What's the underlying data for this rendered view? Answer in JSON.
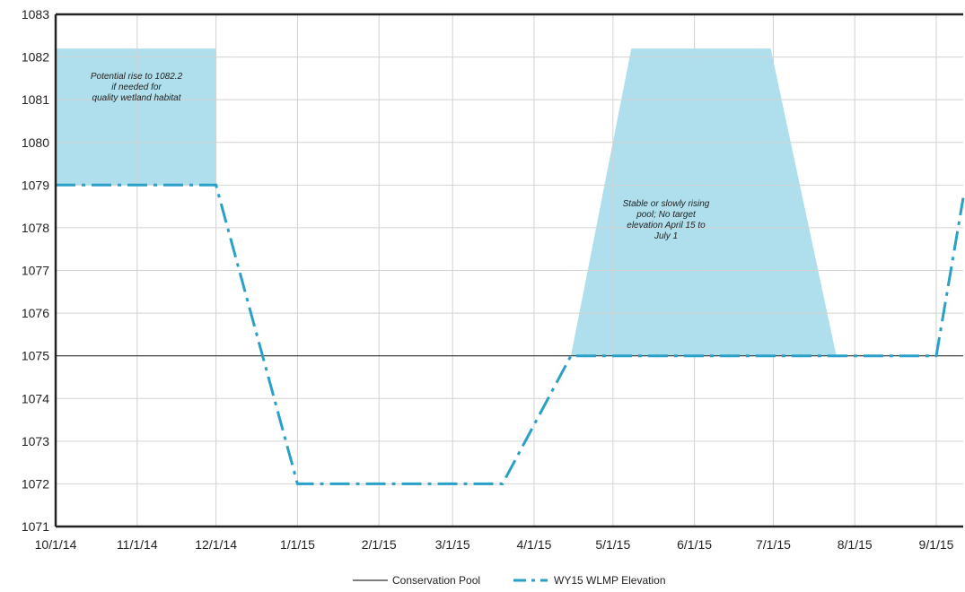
{
  "chart_data": {
    "type": "line",
    "x_ticks": [
      "10/1/14",
      "11/1/14",
      "12/1/14",
      "1/1/15",
      "2/1/15",
      "3/1/15",
      "4/1/15",
      "5/1/15",
      "6/1/15",
      "7/1/15",
      "8/1/15",
      "9/1/15"
    ],
    "ylim": [
      1071,
      1083
    ],
    "y_ticks": [
      1071,
      1072,
      1073,
      1074,
      1075,
      1076,
      1077,
      1078,
      1079,
      1080,
      1081,
      1082,
      1083
    ],
    "grid": true,
    "legend_position": "bottom",
    "series": [
      {
        "name": "Conservation Pool",
        "color": "#333333",
        "style": "solid",
        "points": [
          [
            "10/1/14",
            1075
          ],
          [
            "9/30/15",
            1075
          ]
        ]
      },
      {
        "name": "WY15 WLMP Elevation",
        "color": "#29a0c8",
        "style": "dash-dot",
        "points": [
          [
            "10/1/14",
            1079
          ],
          [
            "12/1/14",
            1079
          ],
          [
            "1/1/15",
            1072
          ],
          [
            "3/20/15",
            1072
          ],
          [
            "4/15/15",
            1075
          ],
          [
            "9/1/15",
            1075
          ],
          [
            "9/30/15",
            1078.7
          ]
        ]
      }
    ],
    "bands": [
      {
        "color": "#a6dcea",
        "polygon": [
          [
            "10/1/14",
            1079
          ],
          [
            "10/1/14",
            1082.2
          ],
          [
            "12/1/14",
            1082.2
          ],
          [
            "12/1/14",
            1079
          ]
        ],
        "note": [
          "Potential rise to 1082.2",
          "if needed for",
          "quality wetland habitat"
        ]
      },
      {
        "color": "#a6dcea",
        "polygon": [
          [
            "4/15/15",
            1075
          ],
          [
            "5/8/15",
            1082.2
          ],
          [
            "6/30/15",
            1082.2
          ],
          [
            "7/25/15",
            1075
          ]
        ],
        "note": [
          "Stable or slowly rising",
          "pool; No target",
          "elevation April 15 to",
          "July 1"
        ]
      }
    ]
  }
}
